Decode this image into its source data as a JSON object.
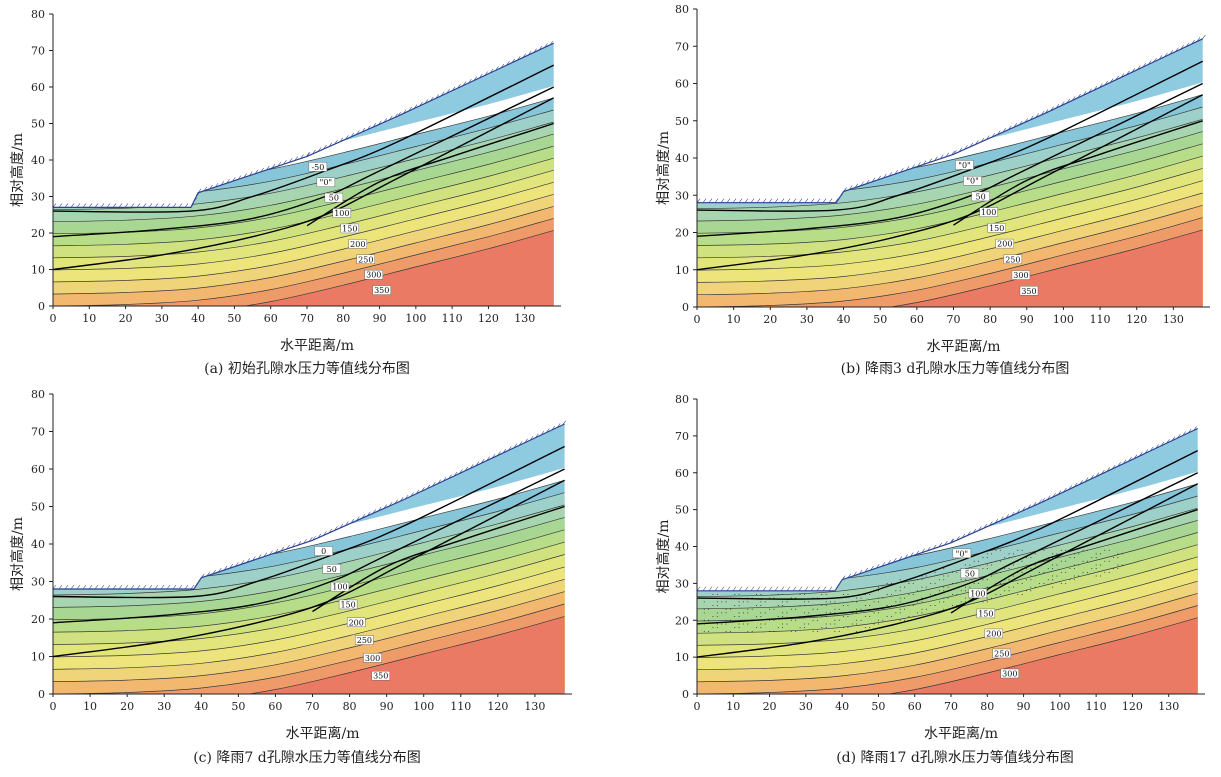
{
  "figure": {
    "panels": [
      {
        "caption": "(a) 初始孔隙水压力等值线分布图"
      },
      {
        "caption": "(b) 降雨3 d孔隙水压力等值线分布图"
      },
      {
        "caption": "(c) 降雨7 d孔隙水压力等值线分布图"
      },
      {
        "caption": "(d) 降雨17 d孔隙水压力等值线分布图"
      }
    ]
  },
  "chart_data": [
    {
      "type": "contour",
      "title": "(a) 初始孔隙水压力等值线分布图",
      "xlabel": "水平距离/m",
      "ylabel": "相对高度/m",
      "xlim": [
        0,
        140
      ],
      "ylim": [
        0,
        80
      ],
      "x_ticks": [
        "0",
        "10",
        "20",
        "30",
        "40",
        "50",
        "60",
        "70",
        "80",
        "90",
        "100",
        "110",
        "120",
        "130"
      ],
      "y_ticks": [
        "0",
        "10",
        "20",
        "30",
        "40",
        "50",
        "60",
        "70",
        "80"
      ],
      "slope_surface": {
        "x": [
          0,
          38,
          40,
          70,
          95,
          140
        ],
        "y": [
          27,
          27,
          31,
          41,
          52,
          72
        ]
      },
      "contour_labels": [
        "-50",
        "\"0\"",
        "50",
        "100",
        "150",
        "200",
        "250",
        "300",
        "350"
      ],
      "wetting_front": false
    },
    {
      "type": "contour",
      "title": "(b) 降雨3 d孔隙水压力等值线分布图",
      "xlabel": "水平距离/m",
      "ylabel": "相对高度/m",
      "xlim": [
        0,
        140
      ],
      "ylim": [
        0,
        80
      ],
      "x_ticks": [
        "0",
        "10",
        "20",
        "30",
        "40",
        "50",
        "60",
        "70",
        "80",
        "90",
        "100",
        "110",
        "120",
        "130"
      ],
      "y_ticks": [
        "0",
        "10",
        "20",
        "30",
        "40",
        "50",
        "60",
        "70",
        "80"
      ],
      "slope_surface": {
        "x": [
          0,
          38,
          40,
          70,
          95,
          140
        ],
        "y": [
          28,
          28,
          31,
          41,
          52,
          72
        ]
      },
      "contour_labels": [
        "\"0\"",
        "\"0\"",
        "50",
        "100",
        "150",
        "200",
        "250",
        "300",
        "350"
      ],
      "wetting_front": false
    },
    {
      "type": "contour",
      "title": "(c) 降雨7 d孔隙水压力等值线分布图",
      "xlabel": "水平距离/m",
      "ylabel": "相对高度/m",
      "xlim": [
        0,
        140
      ],
      "ylim": [
        0,
        80
      ],
      "x_ticks": [
        "0",
        "10",
        "20",
        "30",
        "40",
        "50",
        "60",
        "70",
        "80",
        "90",
        "100",
        "110",
        "120",
        "130"
      ],
      "y_ticks": [
        "0",
        "10",
        "20",
        "30",
        "40",
        "50",
        "60",
        "70",
        "80"
      ],
      "slope_surface": {
        "x": [
          0,
          38,
          40,
          70,
          95,
          140
        ],
        "y": [
          28,
          28,
          31,
          41,
          52,
          72
        ]
      },
      "contour_labels": [
        "0",
        "50",
        "100",
        "150",
        "200",
        "250",
        "300",
        "350"
      ],
      "wetting_front": false
    },
    {
      "type": "contour",
      "title": "(d) 降雨17 d孔隙水压力等值线分布图",
      "xlabel": "水平距离/m",
      "ylabel": "相对高度/m",
      "xlim": [
        0,
        140
      ],
      "ylim": [
        0,
        80
      ],
      "x_ticks": [
        "0",
        "10",
        "20",
        "30",
        "40",
        "50",
        "60",
        "70",
        "80",
        "90",
        "100",
        "110",
        "120",
        "130"
      ],
      "y_ticks": [
        "0",
        "10",
        "20",
        "30",
        "40",
        "50",
        "60",
        "70",
        "80"
      ],
      "slope_surface": {
        "x": [
          0,
          38,
          40,
          70,
          95,
          140
        ],
        "y": [
          28,
          28,
          31,
          41,
          52,
          72
        ]
      },
      "contour_labels": [
        "\"0\"",
        "50",
        "100",
        "150",
        "200",
        "250",
        "300"
      ],
      "wetting_front": true
    }
  ]
}
